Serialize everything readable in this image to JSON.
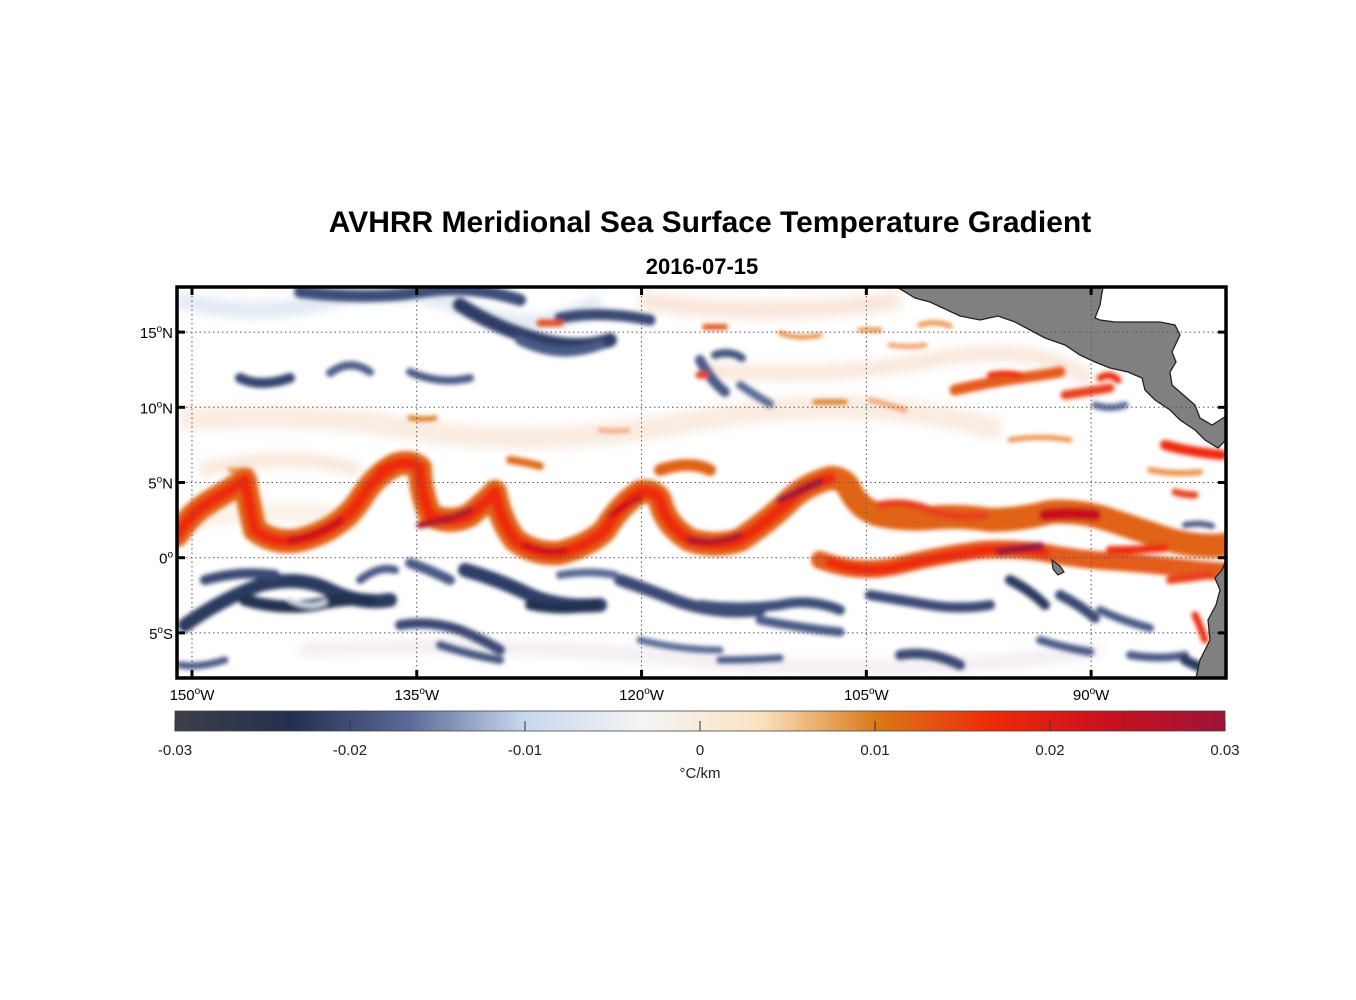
{
  "title": "AVHRR Meridional Sea Surface Temperature Gradient",
  "subtitle": "2016-07-15",
  "map": {
    "lon_range": [
      -151,
      -81
    ],
    "lat_range": [
      -8,
      18
    ],
    "lon_ticks": [
      {
        "value": -150,
        "num": "150",
        "hemi": "W"
      },
      {
        "value": -135,
        "num": "135",
        "hemi": "W"
      },
      {
        "value": -120,
        "num": "120",
        "hemi": "W"
      },
      {
        "value": -105,
        "num": "105",
        "hemi": "W"
      },
      {
        "value": -90,
        "num": "90",
        "hemi": "W"
      }
    ],
    "lat_ticks": [
      {
        "value": 15,
        "num": "15",
        "hemi": "N"
      },
      {
        "value": 10,
        "num": "10",
        "hemi": "N"
      },
      {
        "value": 5,
        "num": "5",
        "hemi": "N"
      },
      {
        "value": 0,
        "num": "0",
        "hemi": ""
      },
      {
        "value": -5,
        "num": "5",
        "hemi": "S"
      }
    ],
    "degree_symbol": "o",
    "grid": "dotted",
    "land_color": "#808080",
    "ocean_background": "#ffffff"
  },
  "colorbar": {
    "min": -0.03,
    "max": 0.03,
    "ticks": [
      "-0.03",
      "-0.02",
      "-0.01",
      "0",
      "0.01",
      "0.02",
      "0.03"
    ],
    "label": "°C/km",
    "colors": [
      "#3c3f48",
      "#233050",
      "#5a6a96",
      "#c8d8ee",
      "#f4f4f4",
      "#fbe4c4",
      "#d97a1a",
      "#ee2a0a",
      "#c8101e",
      "#9e1438"
    ]
  }
}
